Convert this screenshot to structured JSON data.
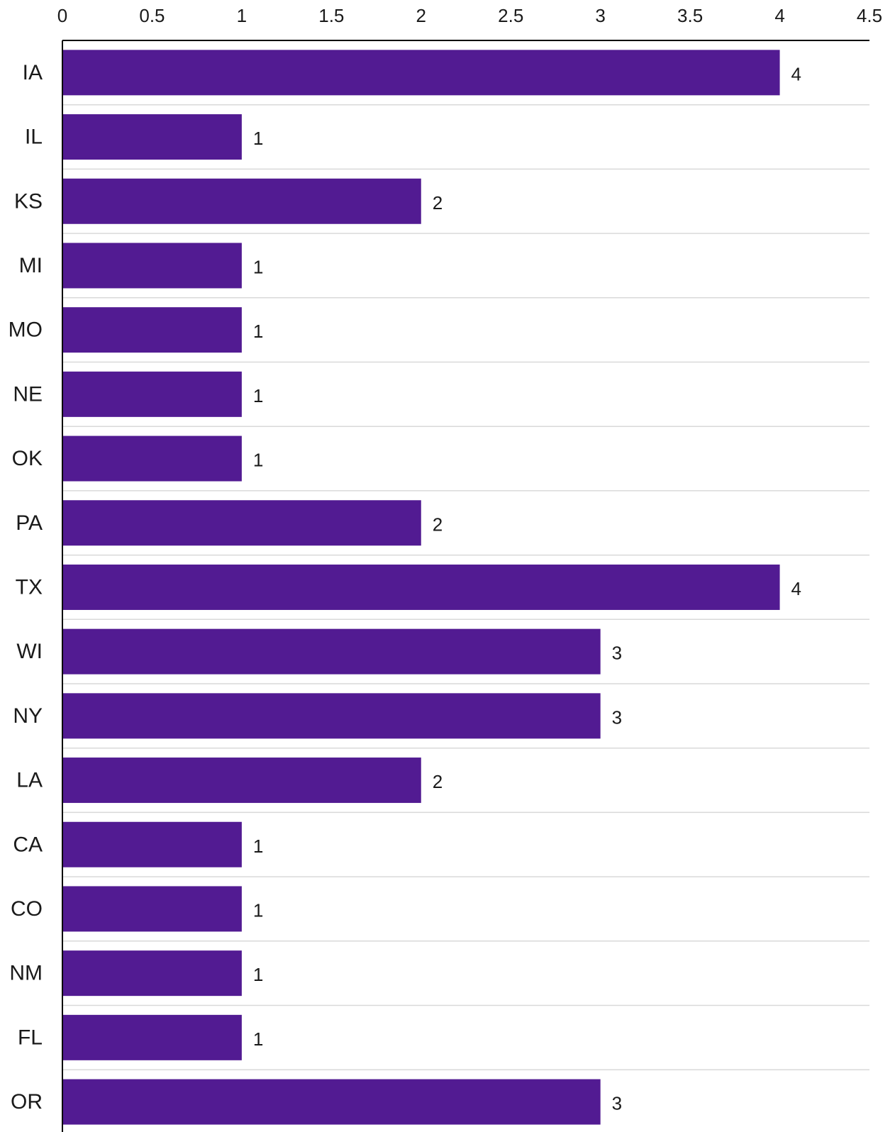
{
  "chart_data": {
    "type": "bar",
    "orientation": "horizontal",
    "title": "",
    "xlabel": "",
    "ylabel": "",
    "categories": [
      "IA",
      "IL",
      "KS",
      "MI",
      "MO",
      "NE",
      "OK",
      "PA",
      "TX",
      "WI",
      "NY",
      "LA",
      "CA",
      "CO",
      "NM",
      "FL",
      "OR"
    ],
    "values": [
      4,
      1,
      2,
      1,
      1,
      1,
      1,
      2,
      4,
      3,
      3,
      2,
      1,
      1,
      1,
      1,
      3
    ],
    "xlim": [
      0,
      4.5
    ],
    "xticks": [
      "0",
      "0.5",
      "1",
      "1.5",
      "2",
      "2.5",
      "3",
      "3.5",
      "4",
      "4.5"
    ],
    "x_axis_position": "top",
    "grid": "horizontal separators between categories",
    "legend": "none",
    "data_labels": true,
    "bar_color": "#521b92",
    "grid_color": "#d9d9d9",
    "axis_color": "#000000"
  }
}
